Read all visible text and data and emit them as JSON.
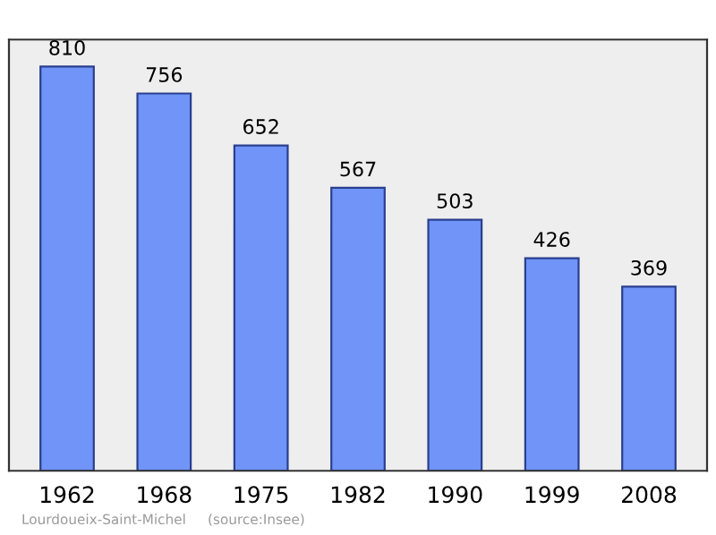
{
  "chart_data": {
    "type": "bar",
    "categories": [
      "1962",
      "1968",
      "1975",
      "1982",
      "1990",
      "1999",
      "2008"
    ],
    "values": [
      810,
      756,
      652,
      567,
      503,
      426,
      369
    ],
    "color": "#7094f7",
    "ylim": [
      0,
      864
    ],
    "data_labels": true,
    "grid": false,
    "legend": false,
    "annotations": [
      "Lourdoueix-Saint-Michel",
      "(source:Insee)"
    ]
  }
}
